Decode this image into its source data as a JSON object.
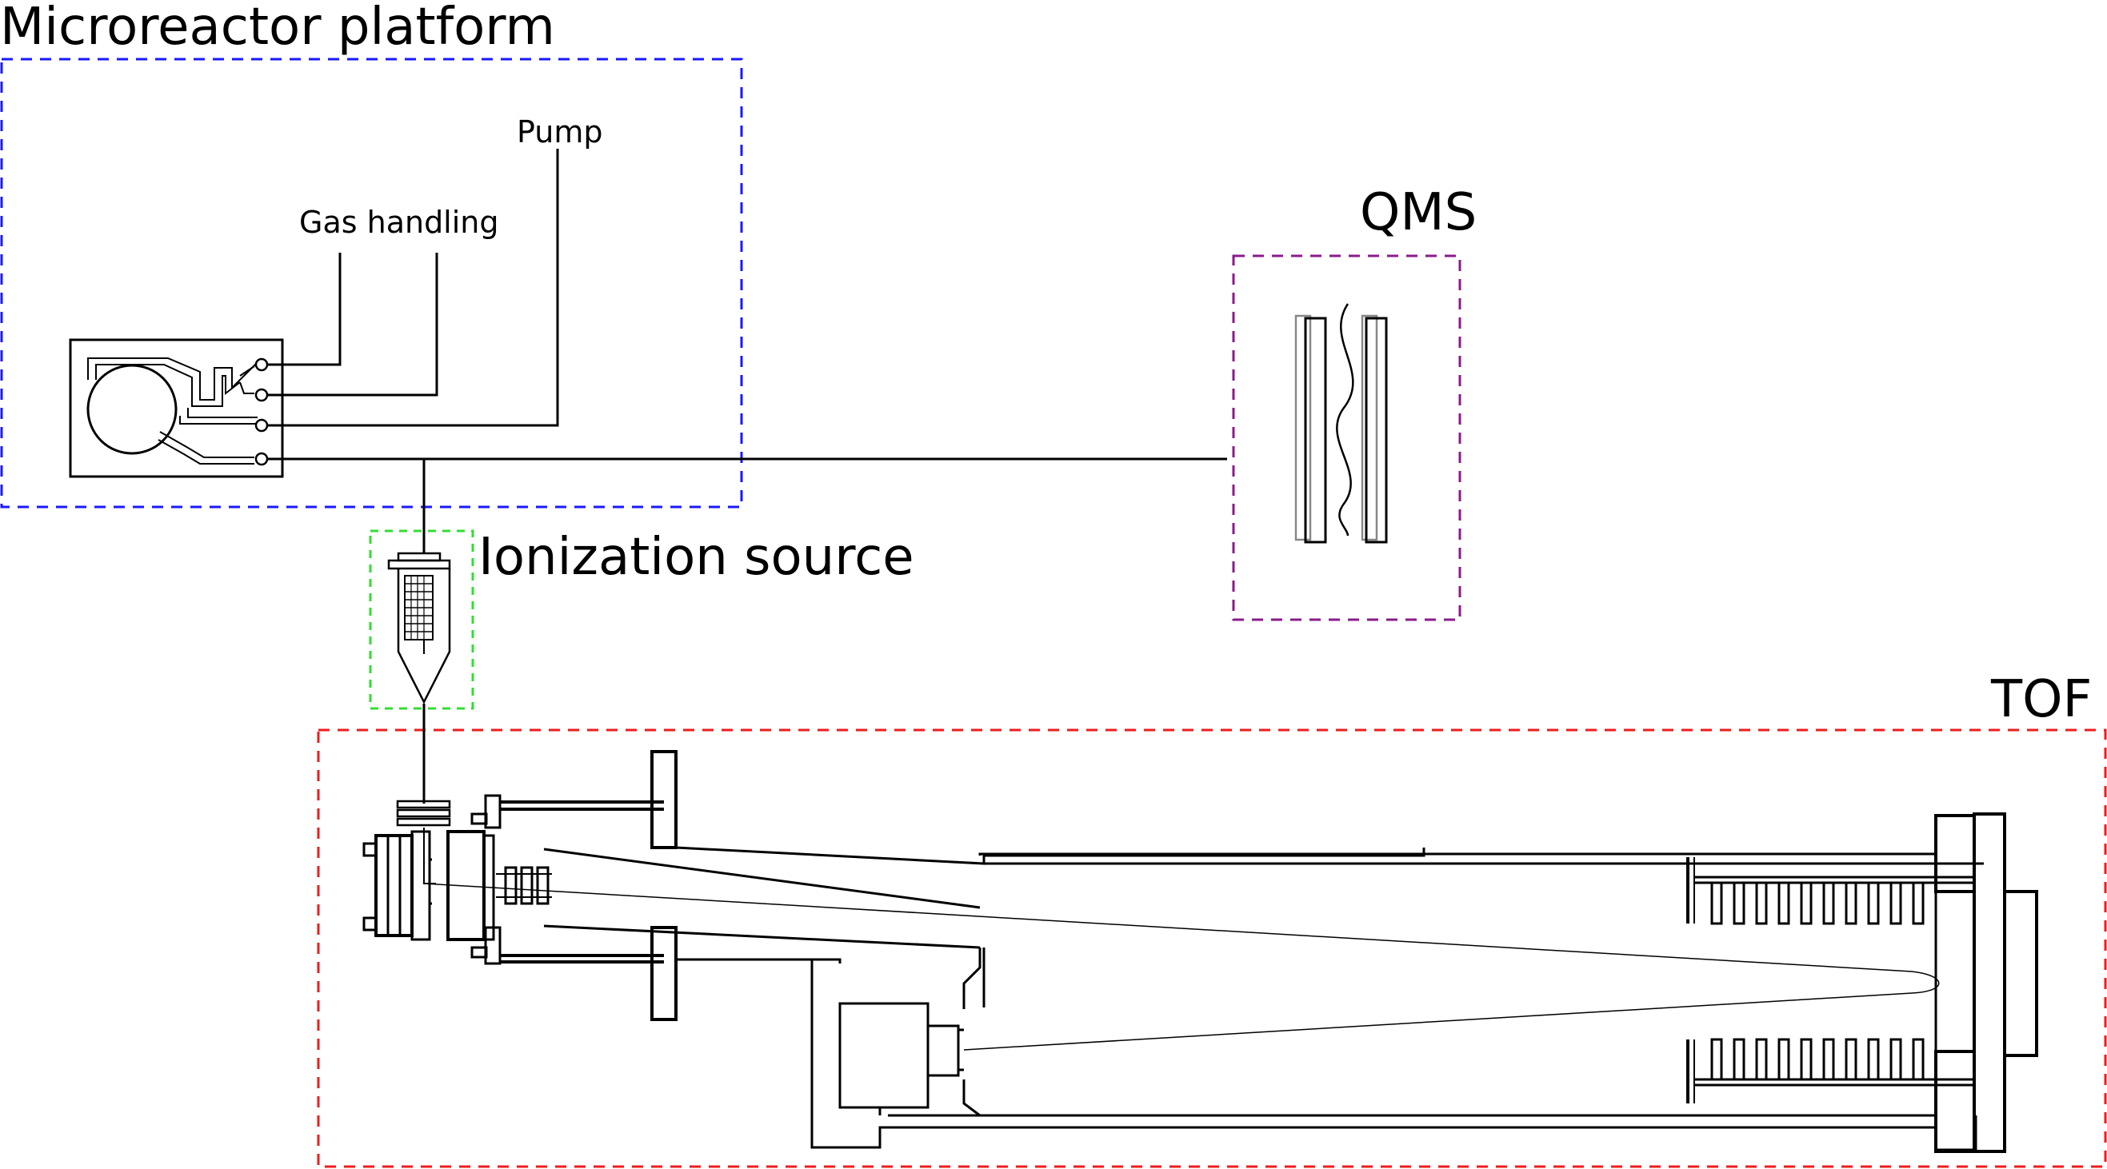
{
  "labels": {
    "microreactor_platform": "Microreactor platform",
    "qms": "QMS",
    "ionization_source": "Ionization source",
    "tof": "TOF",
    "pump": "Pump",
    "gas_handling": "Gas handling"
  },
  "colors": {
    "microreactor_box": "#1a1aff",
    "qms_box": "#8b1a8b",
    "ionization_box": "#33dd33",
    "tof_box": "#ee1c1c",
    "lines": "#000000"
  }
}
